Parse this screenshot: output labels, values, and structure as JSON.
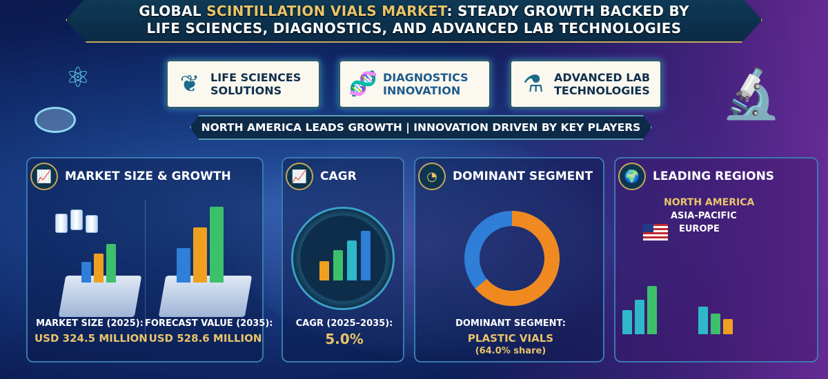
{
  "title": {
    "line1_pre": "GLOBAL ",
    "line1_highlight": "SCINTILLATION VIALS MARKET",
    "line1_post": ": STEADY GROWTH BACKED BY",
    "line2": "LIFE SCIENCES, DIAGNOSTICS, AND ADVANCED LAB TECHNOLOGIES"
  },
  "pillars": [
    {
      "icon": "leaf-hands-icon",
      "line1": "LIFE SCIENCES",
      "line2": "SOLUTIONS"
    },
    {
      "icon": "dna-icon",
      "line1": "DIAGNOSTICS",
      "line2": "INNOVATION"
    },
    {
      "icon": "flask-icon",
      "line1": "ADVANCED LAB",
      "line2": "TECHNOLOGIES"
    }
  ],
  "banner": "NORTH AMERICA LEADS GROWTH | INNOVATION DRIVEN BY KEY PLAYERS",
  "panels": {
    "market": {
      "title": "MARKET SIZE & GROWTH",
      "size_label": "MARKET SIZE (2025):",
      "size_value": "USD 324.5 MILLION",
      "forecast_label": "FORECAST VALUE (2035):",
      "forecast_value": "USD 528.6 MILLION"
    },
    "cagr": {
      "title": "CAGR",
      "label": "CAGR (2025–2035):",
      "value": "5.0%"
    },
    "segment": {
      "title": "DOMINANT SEGMENT",
      "label": "DOMINANT SEGMENT:",
      "value": "PLASTIC VIALS",
      "share": "(64.0% share)",
      "share_fraction": 0.64
    },
    "regions": {
      "title": "LEADING REGIONS",
      "items": [
        "NORTH AMERICA",
        "ASIA-PACIFIC",
        "EUROPE"
      ]
    }
  },
  "colors": {
    "gold": "#e9c46a",
    "navy": "#0b1a4a",
    "purple": "#8c32b4",
    "teal": "#2fb8c8"
  }
}
